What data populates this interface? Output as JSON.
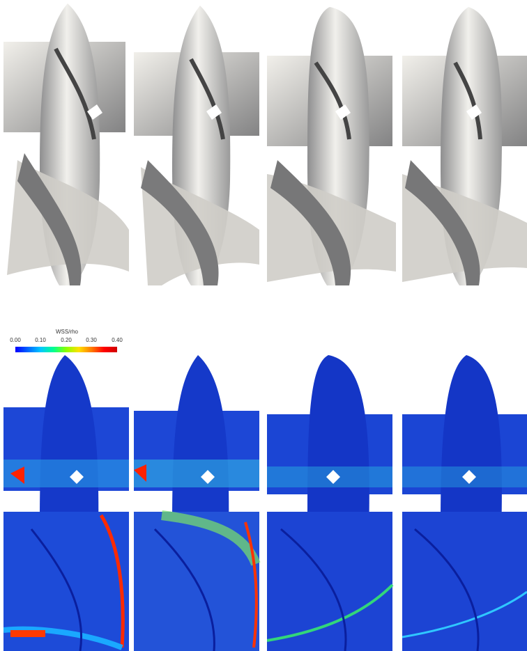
{
  "colorbar": {
    "title": "WSS/rho",
    "ticks": [
      "0.00",
      "0.10",
      "0.20",
      "0.30",
      "0.40"
    ],
    "range": [
      0.0,
      0.4
    ],
    "colors": [
      "#0000ff",
      "#00c8ff",
      "#00ff90",
      "#ffe000",
      "#ff0000"
    ]
  },
  "geometry_panels": [
    {
      "name": "geometry-1"
    },
    {
      "name": "geometry-2"
    },
    {
      "name": "geometry-3"
    },
    {
      "name": "geometry-4"
    }
  ],
  "wss_panels": [
    {
      "name": "wss-1"
    },
    {
      "name": "wss-2"
    },
    {
      "name": "wss-3"
    },
    {
      "name": "wss-4"
    }
  ],
  "palette": {
    "surface_light": "#e9e7e2",
    "surface_mid": "#b9b9b7",
    "surface_dark": "#6f6f70",
    "wss_base": "#1f3fd8"
  }
}
